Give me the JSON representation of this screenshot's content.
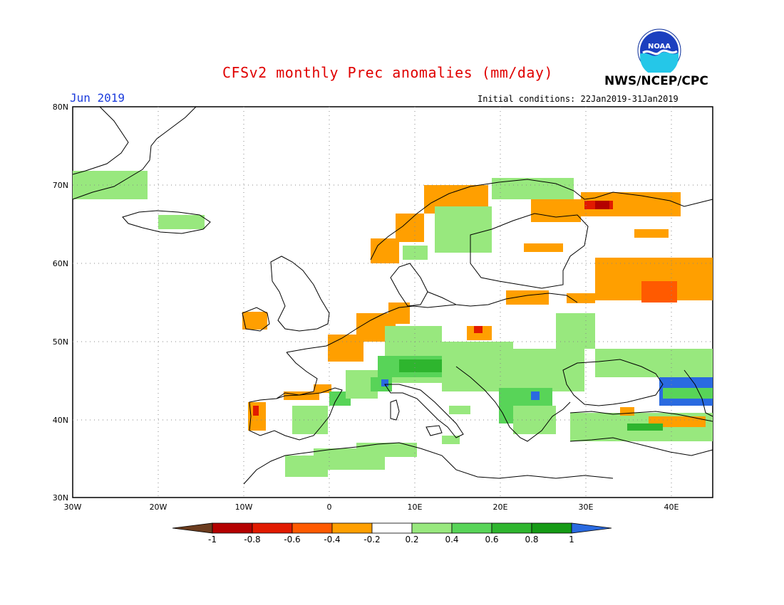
{
  "title": "CFSv2 monthly Prec anomalies (mm/day)",
  "organization": "NWS/NCEP/CPC",
  "logo_text": "NOAA",
  "month_label": "Jun 2019",
  "initial_conditions": "Initial conditions: 22Jan2019-31Jan2019",
  "lat_labels": [
    "80N",
    "70N",
    "60N",
    "50N",
    "40N",
    "30N"
  ],
  "lon_labels": [
    "30W",
    "20W",
    "10W",
    "0",
    "10E",
    "20E",
    "30E",
    "40E"
  ],
  "colorbar": {
    "labels": [
      "-1",
      "-0.8",
      "-0.6",
      "-0.4",
      "-0.2",
      "0.2",
      "0.4",
      "0.6",
      "0.8",
      "1"
    ],
    "colors": [
      "#6b3c1e",
      "#b40000",
      "#e11a00",
      "#ff5a00",
      "#ff9f00",
      "#ffffff",
      "#98e87e",
      "#58d458",
      "#2eb52e",
      "#159a15",
      "#2a6ae0"
    ]
  },
  "colors": {
    "title": "#e00000",
    "month": "#1c3cdc",
    "land_outline": "#000000",
    "grid": "#888888"
  }
}
